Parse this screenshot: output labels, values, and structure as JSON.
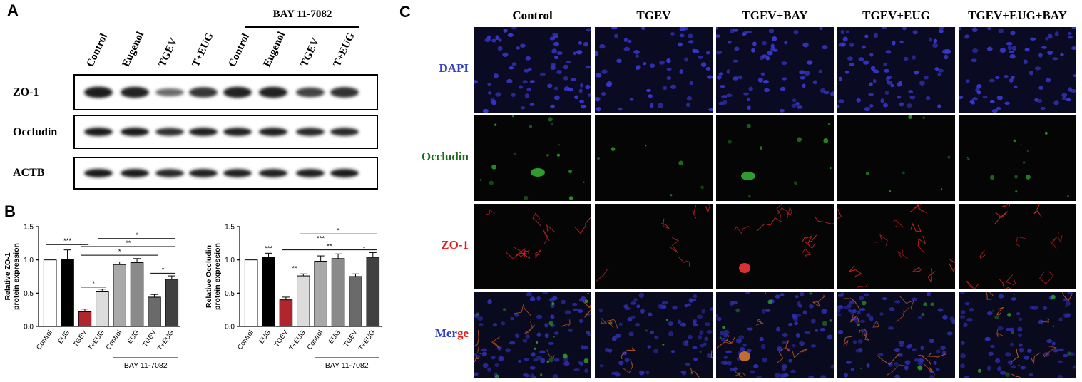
{
  "panel_letters": {
    "a": "A",
    "b": "B",
    "c": "C"
  },
  "panel_a": {
    "treatment_header": "BAY 11-7082",
    "lanes": [
      "Control",
      "Eugenol",
      "TGEV",
      "T+EUG",
      "Control",
      "Eugenol",
      "TGEV",
      "T+EUG"
    ],
    "rows": [
      {
        "label": "ZO-1",
        "intensity": [
          1.0,
          0.95,
          0.35,
          0.8,
          0.95,
          0.95,
          0.7,
          0.85
        ]
      },
      {
        "label": "Occludin",
        "intensity": [
          1.0,
          1.0,
          0.85,
          0.95,
          0.95,
          0.95,
          0.9,
          0.9
        ]
      },
      {
        "label": "ACTB",
        "intensity": [
          1.0,
          1.0,
          0.9,
          0.95,
          0.95,
          0.95,
          0.95,
          1.0
        ]
      }
    ]
  },
  "chart_data": [
    {
      "type": "bar",
      "ylabel": "Relative ZO-1 protein expression",
      "ylabel_lines": [
        "Relative ZO-1",
        "protein expression"
      ],
      "ylim": [
        0,
        1.5
      ],
      "yticks": [
        "0.0",
        "0.5",
        "1.0",
        "1.5"
      ],
      "categories": [
        "Control",
        "EUG",
        "TGEV",
        "T+EUG",
        "Control",
        "EUG",
        "TGEV",
        "T+EUG"
      ],
      "values": [
        1.0,
        1.01,
        0.22,
        0.52,
        0.93,
        0.96,
        0.44,
        0.71
      ],
      "errors": [
        0.0,
        0.14,
        0.04,
        0.04,
        0.04,
        0.06,
        0.04,
        0.05
      ],
      "colors": [
        "#ffffff",
        "#000000",
        "#b0262c",
        "#dcdcdc",
        "#a9a9a9",
        "#8a8a8a",
        "#6a6a6a",
        "#404040"
      ],
      "group_label": "BAY 11-7082",
      "significance": [
        {
          "from": 0,
          "to": 2,
          "label": "***",
          "y": 1.23
        },
        {
          "from": 2,
          "to": 3,
          "label": "*",
          "y": 0.59
        },
        {
          "from": 2,
          "to": 6,
          "label": "*",
          "y": 1.07
        },
        {
          "from": 2,
          "to": 7,
          "label": "**",
          "y": 1.2
        },
        {
          "from": 3,
          "to": 7,
          "label": "*",
          "y": 1.32
        },
        {
          "from": 6,
          "to": 7,
          "label": "*",
          "y": 0.8
        }
      ]
    },
    {
      "type": "bar",
      "ylabel": "Relative Occludin protein expression",
      "ylabel_lines": [
        "Relative Occludin",
        "protein expression"
      ],
      "ylim": [
        0,
        1.5
      ],
      "yticks": [
        "0.0",
        "0.5",
        "1.0",
        "1.5"
      ],
      "categories": [
        "Control",
        "EUG",
        "TGEV",
        "T+EUG",
        "Control",
        "EUG",
        "TGEV",
        "T+EUG"
      ],
      "values": [
        1.0,
        1.04,
        0.4,
        0.76,
        0.98,
        1.02,
        0.75,
        1.04
      ],
      "errors": [
        0.0,
        0.06,
        0.04,
        0.03,
        0.08,
        0.07,
        0.04,
        0.07
      ],
      "colors": [
        "#ffffff",
        "#000000",
        "#b0262c",
        "#dcdcdc",
        "#a9a9a9",
        "#8a8a8a",
        "#6a6a6a",
        "#404040"
      ],
      "group_label": "BAY 11-7082",
      "significance": [
        {
          "from": 0,
          "to": 2,
          "label": "***",
          "y": 1.12
        },
        {
          "from": 2,
          "to": 3,
          "label": "**",
          "y": 0.82
        },
        {
          "from": 2,
          "to": 7,
          "label": "**",
          "y": 1.15
        },
        {
          "from": 2,
          "to": 6,
          "label": "***",
          "y": 1.27
        },
        {
          "from": 3,
          "to": 7,
          "label": "*",
          "y": 1.39
        },
        {
          "from": 6,
          "to": 7,
          "label": "*",
          "y": 1.12
        }
      ]
    }
  ],
  "panel_c": {
    "columns": [
      "Control",
      "TGEV",
      "TGEV+BAY",
      "TGEV+EUG",
      "TGEV+EUG+BAY"
    ],
    "rows": [
      {
        "label": "DAPI",
        "color": "#3040c8",
        "channel": "dapi"
      },
      {
        "label": "Occludin",
        "color": "#1f6b1f",
        "channel": "occludin"
      },
      {
        "label": "ZO-1",
        "color": "#e02020",
        "channel": "zo1"
      },
      {
        "label_parts": [
          "Mer",
          "ge"
        ],
        "label_colors": [
          "#3040c8",
          "#e02020"
        ],
        "channel": "merge"
      }
    ]
  }
}
